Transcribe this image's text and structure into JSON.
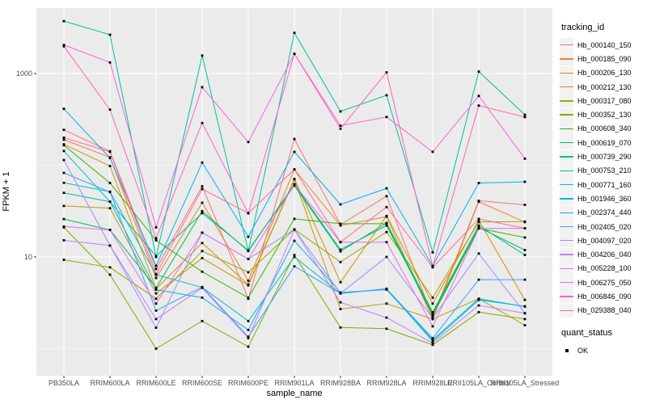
{
  "figure": {
    "background": "#FFFFFF",
    "panel_background": "#EBEBEB",
    "grid_color": "#FFFFFF",
    "axis_text_color": "#4D4D4D",
    "axis_title_color": "#000000",
    "point_color": "#000000"
  },
  "axes": {
    "y_label": "FPKM + 1",
    "x_label": "sample_name",
    "y_tick_labels": [
      "1000",
      "10"
    ]
  },
  "legend": {
    "tracking_title": "tracking_id",
    "quant_title": "quant_status",
    "quant_entries": [
      {
        "label": "OK",
        "marker": "black-square"
      }
    ]
  },
  "chart_data": {
    "type": "line",
    "title": "",
    "xlabel": "sample_name",
    "ylabel": "FPKM + 1",
    "y_scale": "log10",
    "ylim": [
      0.5,
      5200
    ],
    "y_major_ticks": [
      1000,
      10
    ],
    "y_minor_ticks": [
      100,
      1
    ],
    "grid": true,
    "legend_position": "right",
    "point_marker": "black-square",
    "categories": [
      "PB350LA",
      "RRIM600LA",
      "RRIM600LE",
      "RRIM600SE",
      "RRIM600PE",
      "RRIM901LA",
      "RRIM928BA",
      "RRIM928LA",
      "RRIM928LE",
      "RRII105LA_Control",
      "RRII105LA_Stressed"
    ],
    "series": [
      {
        "name": "Hb_000140_150",
        "color": "#F8766D",
        "values": [
          243,
          142,
          7.4,
          59,
          3.5,
          193,
          22.5,
          46,
          2.2,
          41,
          37
        ]
      },
      {
        "name": "Hb_000185_090",
        "color": "#EA8331",
        "values": [
          190,
          122,
          5.9,
          39,
          5.5,
          90,
          22,
          27.5,
          2.1,
          40,
          24
        ]
      },
      {
        "name": "Hb_000206_130",
        "color": "#D89000",
        "values": [
          169,
          98,
          4.5,
          14.2,
          5.0,
          71,
          5.3,
          28,
          3.1,
          25,
          3.4
        ]
      },
      {
        "name": "Hb_000212_130",
        "color": "#C09B00",
        "values": [
          36,
          34,
          4.0,
          9.7,
          4.9,
          70,
          2.7,
          3.1,
          2.1,
          3.5,
          1.8
        ]
      },
      {
        "name": "Hb_000317_080",
        "color": "#A3A500",
        "values": [
          9.3,
          7.7,
          3.5,
          11.6,
          6.8,
          20,
          8.8,
          18.7,
          3.6,
          24,
          24.3
        ]
      },
      {
        "name": "Hb_000352_130",
        "color": "#7CAE00",
        "values": [
          21,
          6.4,
          1.0,
          2.0,
          1.05,
          10.5,
          1.7,
          1.65,
          1.1,
          2.5,
          2.1
        ]
      },
      {
        "name": "Hb_000608_340",
        "color": "#39B600",
        "values": [
          165,
          64,
          15.2,
          6.9,
          3.6,
          26,
          23,
          23,
          2.3,
          20.5,
          16.3
        ]
      },
      {
        "name": "Hb_000619_070",
        "color": "#00BB4E",
        "values": [
          25.9,
          19.7,
          4.6,
          31.6,
          11.6,
          62,
          12,
          22,
          2.4,
          21,
          11.9
        ]
      },
      {
        "name": "Hb_000739_290",
        "color": "#00BF7D",
        "values": [
          50,
          40,
          10.2,
          30,
          11.8,
          60,
          11.5,
          23.5,
          2.5,
          22,
          10.5
        ]
      },
      {
        "name": "Hb_000753_210",
        "color": "#00C1A3",
        "values": [
          3730,
          2650,
          10,
          1570,
          11.6,
          2780,
          386,
          580,
          11.2,
          1050,
          355
        ]
      },
      {
        "name": "Hb_000771_160",
        "color": "#00BFC4",
        "values": [
          64.3,
          51.5,
          6.4,
          4.65,
          2.0,
          10,
          4.0,
          4.5,
          1.2,
          3.4,
          2.9
        ]
      },
      {
        "name": "Hb_001946_360",
        "color": "#00BAE0",
        "values": [
          143,
          40,
          4.4,
          3.6,
          1.6,
          15,
          4.1,
          4.4,
          1.25,
          3.5,
          2.87
        ]
      },
      {
        "name": "Hb_002374_440",
        "color": "#00B0F6",
        "values": [
          412,
          120,
          8.0,
          107,
          16.6,
          140,
          37.4,
          56,
          8.0,
          64,
          66
        ]
      },
      {
        "name": "Hb_002405_020",
        "color": "#35A2FF",
        "values": [
          82.5,
          51,
          2.6,
          4.7,
          1.35,
          7.9,
          4.0,
          4.5,
          1.3,
          5.65,
          5.65
        ]
      },
      {
        "name": "Hb_004097_020",
        "color": "#9590FF",
        "values": [
          114,
          13.3,
          1.69,
          18.4,
          9.5,
          20,
          4.0,
          10,
          2.15,
          10.9,
          2.43
        ]
      },
      {
        "name": "Hb_004206_040",
        "color": "#C77CFF",
        "values": [
          15.2,
          13.3,
          2.1,
          4.6,
          1.3,
          19.8,
          3.2,
          2.18,
          1.15,
          2.96,
          2.43
        ]
      },
      {
        "name": "Hb_005228_100",
        "color": "#E76BF3",
        "values": [
          21.5,
          19.7,
          3.1,
          18.4,
          9.5,
          62,
          14.5,
          14.5,
          1.75,
          20.4,
          20.5
        ]
      },
      {
        "name": "Hb_006275_050",
        "color": "#FA62DB",
        "values": [
          2050,
          1320,
          21,
          710,
          179,
          1640,
          270,
          336,
          140,
          570,
          118
        ]
      },
      {
        "name": "Hb_006846_090",
        "color": "#FF62BC",
        "values": [
          1980,
          404,
          16,
          289,
          29.9,
          1640,
          250,
          1030,
          7.9,
          447,
          335
        ]
      },
      {
        "name": "Hb_029388_040",
        "color": "#FF6A98",
        "values": [
          200,
          140,
          6.5,
          55,
          30,
          90,
          14.5,
          35,
          7.7,
          26,
          20.5
        ]
      }
    ]
  }
}
